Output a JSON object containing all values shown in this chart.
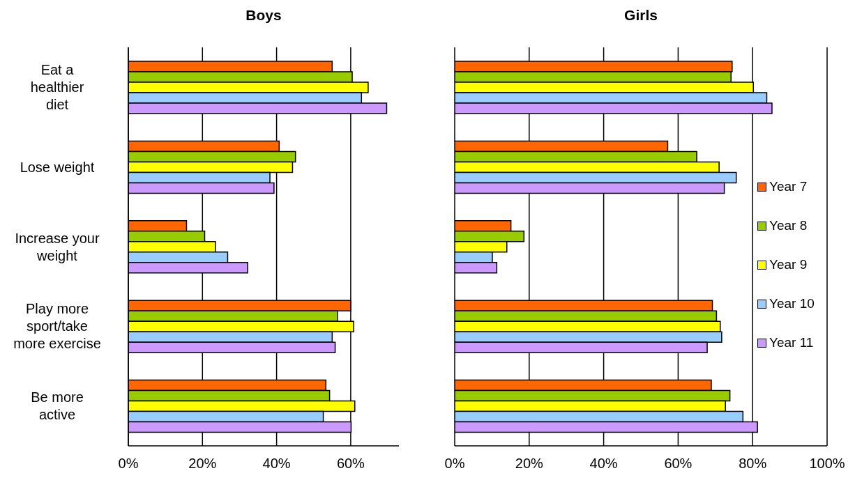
{
  "chart_data": [
    {
      "type": "bar",
      "orientation": "horizontal",
      "title": "Boys",
      "categories": [
        "Eat a healthier diet",
        "Lose weight",
        "Increase your weight",
        "Play more sport/take more exercise",
        "Be more active"
      ],
      "series": [
        {
          "color": "#ff6600",
          "values": [
            55.0,
            40.7,
            15.7,
            60.0,
            53.3
          ]
        },
        {
          "color": "#99cc00",
          "values": [
            60.4,
            45.1,
            20.6,
            56.4,
            54.3
          ]
        },
        {
          "color": "#ffff00",
          "values": [
            64.7,
            44.3,
            23.5,
            60.8,
            61.1
          ]
        },
        {
          "color": "#99ccff",
          "values": [
            62.9,
            38.2,
            26.8,
            55.0,
            52.6
          ]
        },
        {
          "color": "#cc99ff",
          "values": [
            69.7,
            39.3,
            32.2,
            55.8,
            60.1
          ]
        }
      ],
      "xlim": [
        0,
        73
      ],
      "xticks": [
        {
          "value": 0,
          "label": "0%"
        },
        {
          "value": 20,
          "label": "20%"
        },
        {
          "value": 40,
          "label": "40%"
        },
        {
          "value": 60,
          "label": "60%"
        }
      ],
      "grid": "x",
      "legend": false
    },
    {
      "type": "bar",
      "orientation": "horizontal",
      "title": "Girls",
      "categories": [
        null,
        null,
        null,
        null,
        null
      ],
      "series": [
        {
          "name": "Year 7",
          "color": "#ff6600",
          "values": [
            74.5,
            57.2,
            15.1,
            69.2,
            68.9
          ]
        },
        {
          "name": "Year 8",
          "color": "#99cc00",
          "values": [
            74.2,
            65.0,
            18.6,
            70.3,
            73.9
          ]
        },
        {
          "name": "Year 9",
          "color": "#ffff00",
          "values": [
            80.2,
            71.0,
            14.0,
            71.3,
            72.7
          ]
        },
        {
          "name": "Year 10",
          "color": "#99ccff",
          "values": [
            83.8,
            75.6,
            10.1,
            71.7,
            77.4
          ]
        },
        {
          "name": "Year 11",
          "color": "#cc99ff",
          "values": [
            85.2,
            72.4,
            11.3,
            67.8,
            81.3
          ]
        }
      ],
      "xlim": [
        0,
        100
      ],
      "xticks": [
        {
          "value": 0,
          "label": "0%"
        },
        {
          "value": 20,
          "label": "20%"
        },
        {
          "value": 40,
          "label": "40%"
        },
        {
          "value": 60,
          "label": "60%"
        },
        {
          "value": 80,
          "label": "80%"
        },
        {
          "value": 100,
          "label": "100%"
        }
      ],
      "grid": "x",
      "legend": "right",
      "tick_labels": "x"
    }
  ]
}
